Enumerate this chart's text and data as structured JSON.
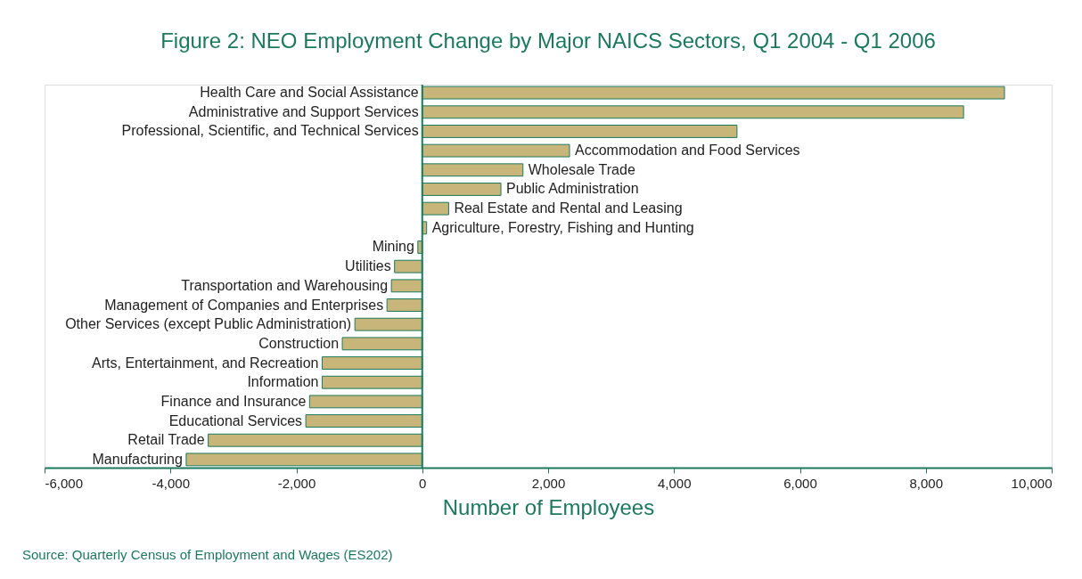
{
  "chart_data": {
    "type": "bar",
    "orientation": "horizontal",
    "title": "Figure 2:  NEO Employment Change by Major NAICS Sectors, Q1 2004 - Q1 2006",
    "xlabel": "Number of Employees",
    "categories": [
      "Health Care and Social Assistance",
      "Administrative and Support Services",
      "Professional, Scientific, and Technical Services",
      "Accommodation and Food Services",
      "Wholesale Trade",
      "Public Administration",
      "Real Estate and Rental and Leasing",
      "Agriculture, Forestry, Fishing and Hunting",
      "Mining",
      "Utilities",
      "Transportation and Warehousing",
      "Management of Companies and Enterprises",
      "Other Services (except Public Administration)",
      "Construction",
      "Arts, Entertainment, and Recreation",
      "Information",
      "Finance and Insurance",
      "Educational Services",
      "Retail Trade",
      "Manufacturing"
    ],
    "values": [
      9250,
      8600,
      5000,
      2340,
      1600,
      1250,
      420,
      70,
      -70,
      -440,
      -490,
      -560,
      -1070,
      -1270,
      -1590,
      -1590,
      -1790,
      -1850,
      -3400,
      -3750
    ],
    "color": "#c8b57a",
    "xlim": [
      -6000,
      10000
    ],
    "xticks": [
      {
        "value": -6000,
        "label": "-6,000"
      },
      {
        "value": -4000,
        "label": "-4,000"
      },
      {
        "value": -2000,
        "label": "-2,000"
      },
      0,
      {
        "value": 2000,
        "label": "2,000"
      },
      {
        "value": 4000,
        "label": "4,000"
      },
      {
        "value": 6000,
        "label": "6,000"
      },
      {
        "value": 8000,
        "label": "8,000"
      },
      {
        "value": 10000,
        "label": "10,000"
      }
    ],
    "grid": false,
    "annotations": [
      "Source: Quarterly Census of Employment and Wages (ES202)"
    ]
  }
}
